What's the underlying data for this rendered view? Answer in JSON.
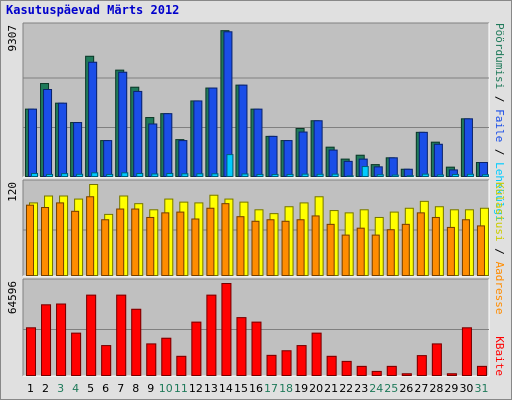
{
  "title": "Kasutuspäevad Märts 2012",
  "chart_data": [
    {
      "type": "bar",
      "name_key": "hits-files-pages-visits",
      "max_label": "9307",
      "ylim": [
        0,
        9307
      ],
      "categories": [
        "1",
        "2",
        "3",
        "4",
        "5",
        "6",
        "7",
        "8",
        "9",
        "10",
        "11",
        "12",
        "13",
        "14",
        "15",
        "16",
        "17",
        "18",
        "19",
        "20",
        "21",
        "22",
        "23",
        "24",
        "25",
        "26",
        "27",
        "28",
        "29",
        "30",
        "31"
      ],
      "weekend_days": [
        "3",
        "4",
        "10",
        "11",
        "17",
        "18",
        "24",
        "25",
        "31"
      ],
      "series": [
        {
          "name": "Pöördumisi",
          "color": "#1f7a5a",
          "values": [
            4240,
            5830,
            4610,
            3410,
            7520,
            2290,
            6660,
            5600,
            3720,
            3960,
            2350,
            4750,
            5550,
            9110,
            5730,
            4240,
            2550,
            2290,
            3040,
            3520,
            1880,
            1140,
            1380,
            800,
            1220,
            510,
            2800,
            2190,
            640,
            3640,
            930
          ]
        },
        {
          "name": "Faile",
          "color": "#1a4ee8",
          "values": [
            4240,
            5460,
            4610,
            3410,
            7150,
            2290,
            6530,
            5340,
            3320,
            3960,
            2290,
            4750,
            5550,
            9040,
            5730,
            4240,
            2550,
            2290,
            2820,
            3520,
            1700,
            1000,
            1140,
            660,
            1220,
            510,
            2800,
            2060,
            470,
            3640,
            930
          ]
        },
        {
          "name": "Lehekülgi",
          "color": "#00ccff",
          "values": [
            250,
            190,
            240,
            200,
            290,
            190,
            290,
            250,
            220,
            250,
            230,
            230,
            230,
            1420,
            220,
            190,
            190,
            190,
            210,
            200,
            210,
            100,
            680,
            170,
            150,
            110,
            210,
            160,
            190,
            200,
            170
          ]
        }
      ]
    },
    {
      "type": "bar",
      "name_key": "visits-sites",
      "max_label": "120",
      "ylim": [
        0,
        120
      ],
      "series": [
        {
          "name": "Külastusi",
          "color": "#ffff00",
          "values": [
            96,
            105,
            105,
            101,
            120,
            81,
            105,
            95,
            87,
            101,
            97,
            96,
            106,
            101,
            97,
            87,
            82,
            91,
            96,
            104,
            86,
            83,
            87,
            77,
            84,
            89,
            98,
            91,
            87,
            87,
            89
          ]
        },
        {
          "name": "Aadresse",
          "color": "#ff8c00",
          "values": [
            93,
            90,
            96,
            85,
            104,
            74,
            88,
            88,
            77,
            83,
            84,
            75,
            89,
            95,
            78,
            72,
            74,
            72,
            74,
            79,
            68,
            54,
            63,
            54,
            61,
            68,
            83,
            77,
            64,
            74,
            66
          ]
        }
      ]
    },
    {
      "type": "bar",
      "name_key": "kbytes",
      "max_label": "64596",
      "ylim": [
        0,
        64596
      ],
      "series": [
        {
          "name": "KBaite",
          "color": "#ff0000",
          "values": [
            33810,
            49790,
            50350,
            30100,
            56500,
            21470,
            56500,
            46680,
            22640,
            26560,
            14000,
            37760,
            56500,
            64596,
            40880,
            37760,
            14670,
            17870,
            21470,
            30100,
            14000,
            10480,
            7020,
            3520,
            7020,
            1890,
            14500,
            22640,
            1890,
            33810,
            7020
          ]
        }
      ]
    }
  ]
}
